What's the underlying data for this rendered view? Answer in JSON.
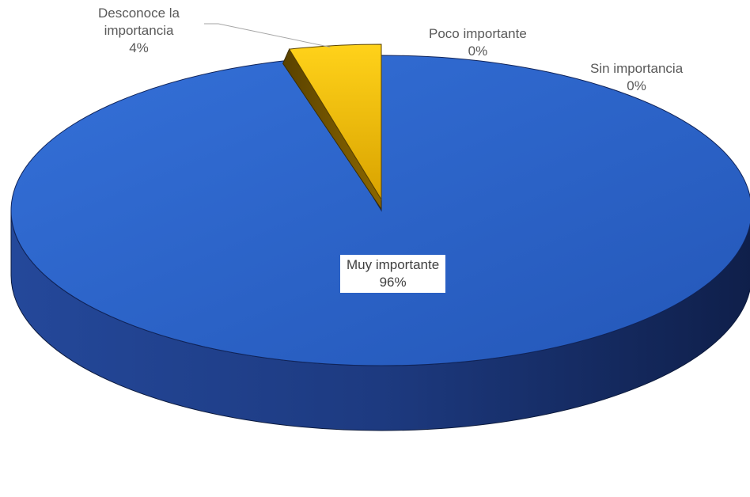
{
  "chart_data": {
    "type": "pie",
    "style": "3d-exploded",
    "legend": "none",
    "slices": [
      {
        "name": "Muy importante",
        "value": 96,
        "label_percent": "96%",
        "color": "#2E67CF"
      },
      {
        "name": "Desconoce la importancia",
        "label_lines": [
          "Desconoce la",
          "importancia"
        ],
        "value": 4,
        "label_percent": "4%",
        "color": "#F2C200"
      },
      {
        "name": "Poco importante",
        "value": 0,
        "label_percent": "0%",
        "color": "#A5A5A5"
      },
      {
        "name": "Sin importancia",
        "value": 0,
        "label_percent": "0%",
        "color": "#70AD47"
      }
    ]
  }
}
